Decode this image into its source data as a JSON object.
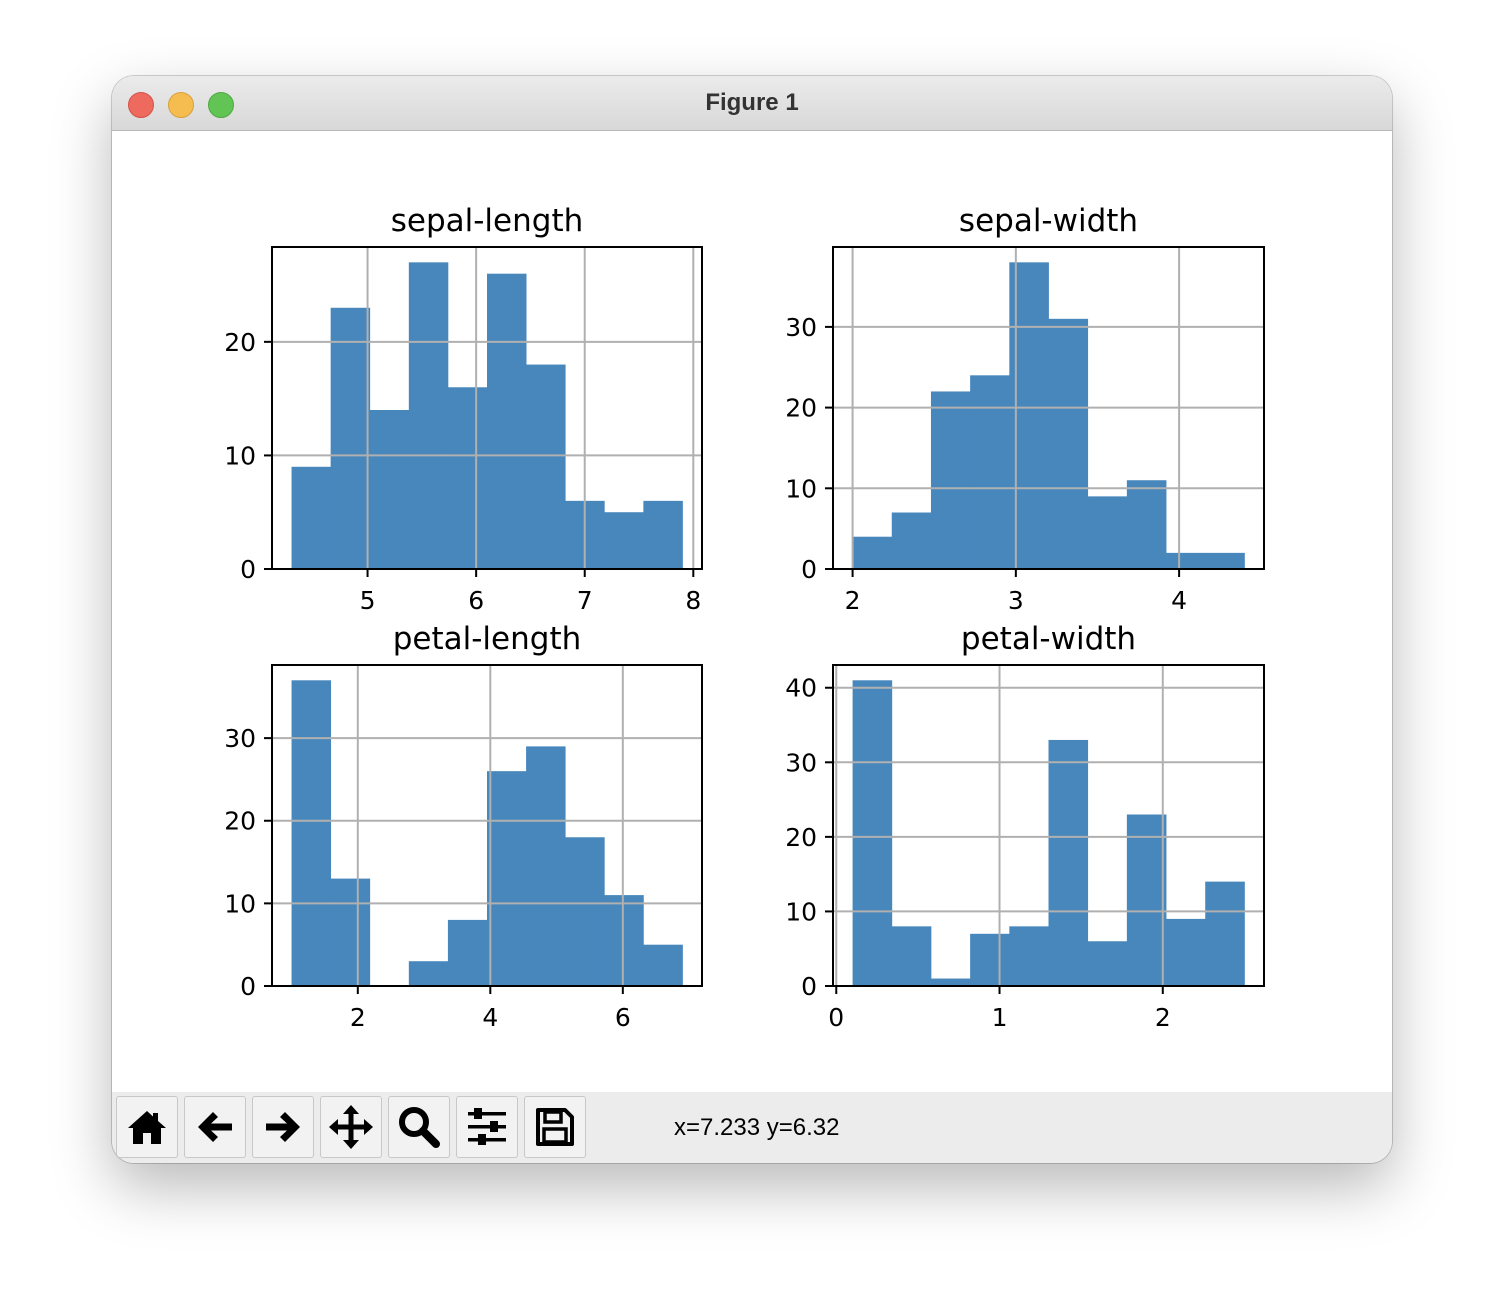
{
  "window": {
    "title": "Figure 1"
  },
  "toolbar": {
    "buttons": [
      {
        "icon": "home-icon",
        "name": "home-button"
      },
      {
        "icon": "arrow-left-icon",
        "name": "back-button"
      },
      {
        "icon": "arrow-right-icon",
        "name": "forward-button"
      },
      {
        "icon": "move-icon",
        "name": "pan-button"
      },
      {
        "icon": "zoom-icon",
        "name": "zoom-button"
      },
      {
        "icon": "sliders-icon",
        "name": "configure-subplots-button"
      },
      {
        "icon": "save-icon",
        "name": "save-button"
      }
    ],
    "coords": "x=7.233 y=6.32"
  },
  "colors": {
    "bar": "#4787bc",
    "grid": "#b0b0b0",
    "axes": "#000000"
  },
  "chart_data": [
    {
      "type": "bar",
      "title": "sepal-length",
      "x": [
        4.3,
        4.66,
        5.02,
        5.38,
        5.74,
        6.1,
        6.46,
        6.82,
        7.18,
        7.54
      ],
      "bin_width": 0.36,
      "values": [
        9,
        23,
        14,
        27,
        16,
        26,
        18,
        6,
        5,
        6
      ],
      "xlim": [
        4.12,
        8.08
      ],
      "ylim": [
        0,
        28.35
      ],
      "xticks": [
        5,
        6,
        7,
        8
      ],
      "yticks": [
        0,
        10,
        20
      ],
      "grid": true
    },
    {
      "type": "bar",
      "title": "sepal-width",
      "x": [
        2.0,
        2.24,
        2.48,
        2.72,
        2.96,
        3.2,
        3.44,
        3.68,
        3.92,
        4.16
      ],
      "bin_width": 0.24,
      "values": [
        4,
        7,
        22,
        24,
        38,
        31,
        9,
        11,
        2,
        2
      ],
      "xlim": [
        1.88,
        4.52
      ],
      "ylim": [
        0,
        39.9
      ],
      "xticks": [
        2,
        3,
        4
      ],
      "yticks": [
        0,
        10,
        20,
        30
      ],
      "grid": true
    },
    {
      "type": "bar",
      "title": "petal-length",
      "x": [
        1.0,
        1.59,
        2.18,
        2.77,
        3.36,
        3.95,
        4.54,
        5.13,
        5.72,
        6.31
      ],
      "bin_width": 0.59,
      "values": [
        37,
        13,
        0,
        3,
        8,
        26,
        29,
        18,
        11,
        5
      ],
      "xlim": [
        0.705,
        7.195
      ],
      "ylim": [
        0,
        38.85
      ],
      "xticks": [
        2,
        4,
        6
      ],
      "yticks": [
        0,
        10,
        20,
        30
      ],
      "grid": true
    },
    {
      "type": "bar",
      "title": "petal-width",
      "x": [
        0.1,
        0.34,
        0.58,
        0.82,
        1.06,
        1.3,
        1.54,
        1.78,
        2.02,
        2.26
      ],
      "bin_width": 0.24,
      "values": [
        41,
        8,
        1,
        7,
        8,
        33,
        6,
        23,
        9,
        14
      ],
      "xlim": [
        -0.02,
        2.62
      ],
      "ylim": [
        0,
        43.05
      ],
      "xticks": [
        0,
        1,
        2
      ],
      "yticks": [
        0,
        10,
        20,
        30,
        40
      ],
      "grid": true
    }
  ]
}
